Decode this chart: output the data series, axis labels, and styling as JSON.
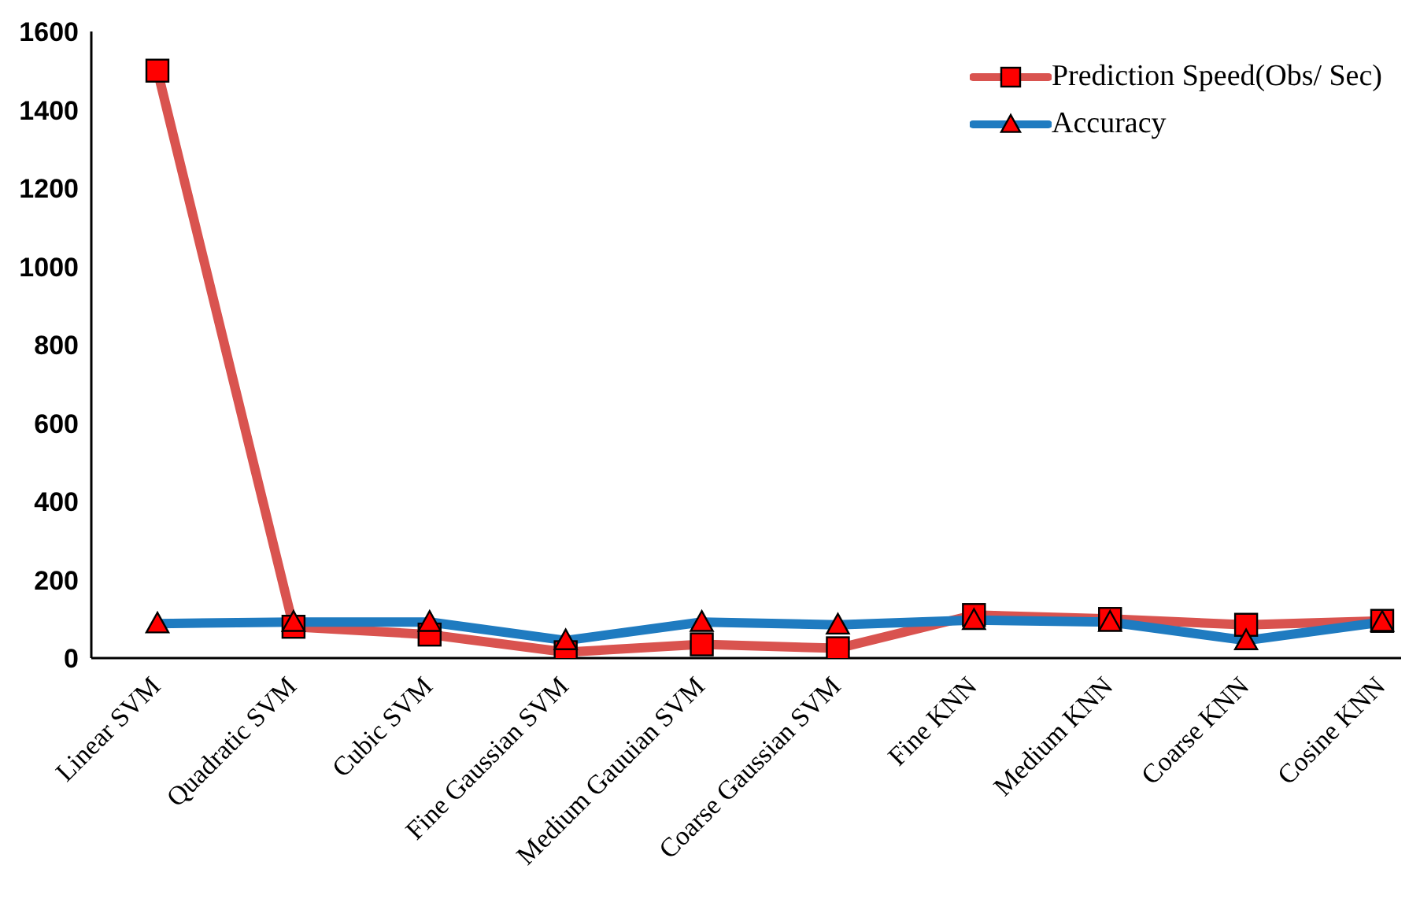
{
  "chart_data": {
    "type": "line",
    "categories": [
      "Linear SVM",
      "Quadratic SVM",
      "Cubic SVM",
      "Fine Gaussian SVM",
      "Medium Gauuian SVM",
      "Coarse Gaussian SVM",
      "Fine KNN",
      "Medium KNN",
      "Coarse KNN",
      "Cosine KNN"
    ],
    "series": [
      {
        "name": "Prediction Speed(Obs/ Sec)",
        "color": "#d9534f",
        "marker": "square",
        "values": [
          1500,
          80,
          60,
          15,
          35,
          25,
          110,
          100,
          85,
          95
        ]
      },
      {
        "name": "Accuracy",
        "color": "#1f7bc0",
        "marker": "triangle",
        "values": [
          88,
          92,
          92,
          45,
          92,
          85,
          97,
          92,
          45,
          92
        ]
      }
    ],
    "ylim": [
      0,
      1600
    ],
    "yticks": [
      0,
      200,
      400,
      600,
      800,
      1000,
      1200,
      1400,
      1600
    ],
    "grid": false,
    "legend": "top right",
    "line_style": "solid"
  }
}
